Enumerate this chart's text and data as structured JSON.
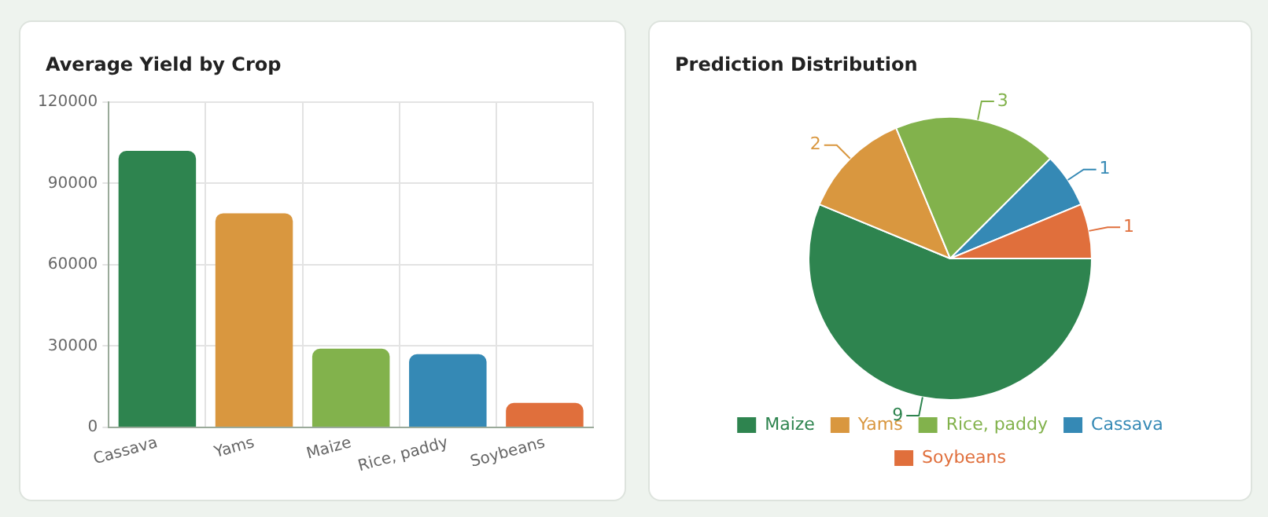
{
  "chart_data": [
    {
      "type": "bar",
      "title": "Average Yield by Crop",
      "categories": [
        "Cassava",
        "Yams",
        "Maize",
        "Rice, paddy",
        "Soybeans"
      ],
      "values": [
        102000,
        79000,
        29000,
        27000,
        9000
      ],
      "colors": [
        "#2e844f",
        "#d9973f",
        "#82b24c",
        "#3589b5",
        "#e06f3c"
      ],
      "ylim": [
        0,
        120000
      ],
      "yticks": [
        0,
        30000,
        60000,
        90000,
        120000
      ],
      "grid": true,
      "legend": false
    },
    {
      "type": "pie",
      "title": "Prediction Distribution",
      "categories": [
        "Maize",
        "Yams",
        "Rice, paddy",
        "Cassava",
        "Soybeans"
      ],
      "values": [
        9,
        2,
        3,
        1,
        1
      ],
      "colors": [
        "#2e844f",
        "#d9973f",
        "#82b24c",
        "#3589b5",
        "#e06f3c"
      ],
      "data_labels": true,
      "legend": "bottom"
    }
  ]
}
